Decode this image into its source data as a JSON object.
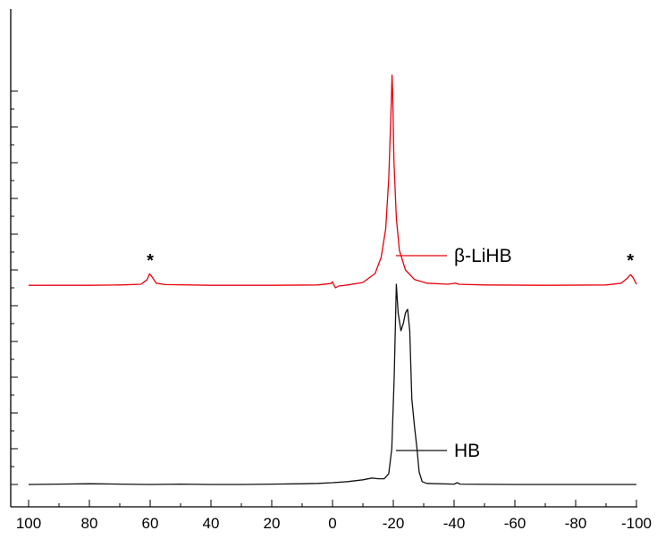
{
  "chart_data": {
    "type": "line",
    "xlim": [
      100,
      -100
    ],
    "x_reversed": true,
    "ylim": [
      0,
      11
    ],
    "xticks": [
      "100",
      "80",
      "60",
      "40",
      "20",
      "0",
      "-20",
      "-40",
      "-60",
      "-80",
      "-100"
    ],
    "y_tick_labels_shown": false,
    "grid": false,
    "legend": "per-series, right side",
    "series": [
      {
        "name": "β-LiHB",
        "color": "#e8000b",
        "offset": 5.55,
        "points": [
          [
            100,
            0.02
          ],
          [
            80,
            0.02
          ],
          [
            70,
            0.03
          ],
          [
            63,
            0.05
          ],
          [
            61,
            0.18
          ],
          [
            60.2,
            0.34
          ],
          [
            59.4,
            0.26
          ],
          [
            58,
            0.08
          ],
          [
            55,
            0.04
          ],
          [
            40,
            0.02
          ],
          [
            20,
            0.02
          ],
          [
            5,
            0.03
          ],
          [
            0.5,
            0.07
          ],
          [
            0,
            0.12
          ],
          [
            -0.5,
            0.02
          ],
          [
            -1,
            -0.05
          ],
          [
            -2,
            0
          ],
          [
            -5,
            0.03
          ],
          [
            -10,
            0.1
          ],
          [
            -14,
            0.35
          ],
          [
            -16,
            0.8
          ],
          [
            -17.5,
            1.6
          ],
          [
            -18.5,
            3
          ],
          [
            -19.2,
            4.8
          ],
          [
            -19.6,
            5.9
          ],
          [
            -19.8,
            5.4
          ],
          [
            -20.2,
            3.5
          ],
          [
            -21,
            1.9
          ],
          [
            -22,
            1
          ],
          [
            -24,
            0.45
          ],
          [
            -27,
            0.18
          ],
          [
            -31,
            0.08
          ],
          [
            -38,
            0.05
          ],
          [
            -40.5,
            0.08
          ],
          [
            -41.5,
            0.05
          ],
          [
            -50,
            0.03
          ],
          [
            -70,
            0.02
          ],
          [
            -90,
            0.03
          ],
          [
            -95,
            0.08
          ],
          [
            -97,
            0.22
          ],
          [
            -98.1,
            0.32
          ],
          [
            -99,
            0.22
          ],
          [
            -100,
            0.05
          ]
        ]
      },
      {
        "name": "HB",
        "color": "#111111",
        "offset": 0,
        "points": [
          [
            100,
            0
          ],
          [
            90,
            0.01
          ],
          [
            80,
            0.02
          ],
          [
            70,
            0.01
          ],
          [
            60,
            0
          ],
          [
            50,
            0.01
          ],
          [
            40,
            0
          ],
          [
            30,
            0
          ],
          [
            20,
            0.01
          ],
          [
            10,
            0.02
          ],
          [
            5,
            0.03
          ],
          [
            0,
            0.05
          ],
          [
            -5,
            0.08
          ],
          [
            -10,
            0.13
          ],
          [
            -13,
            0.18
          ],
          [
            -15,
            0.16
          ],
          [
            -17,
            0.16
          ],
          [
            -18.5,
            0.3
          ],
          [
            -19.5,
            1
          ],
          [
            -20.3,
            3
          ],
          [
            -21,
            5.6
          ],
          [
            -21.6,
            4.8
          ],
          [
            -22.5,
            4.3
          ],
          [
            -23.3,
            4.5
          ],
          [
            -24,
            4.8
          ],
          [
            -24.7,
            4.9
          ],
          [
            -25.4,
            4.3
          ],
          [
            -26.1,
            2.4
          ],
          [
            -27,
            1.6
          ],
          [
            -27.8,
            1
          ],
          [
            -28.5,
            0.35
          ],
          [
            -29.5,
            0.08
          ],
          [
            -31,
            0.03
          ],
          [
            -40,
            0.01
          ],
          [
            -41,
            0.05
          ],
          [
            -42,
            0.01
          ],
          [
            -60,
            0
          ],
          [
            -80,
            0
          ],
          [
            -100,
            0
          ]
        ]
      }
    ],
    "annotations": [
      {
        "text": "*",
        "x": 60,
        "y": 6.1
      },
      {
        "text": "*",
        "x": -98,
        "y": 6.1
      }
    ],
    "legend_entries": [
      {
        "series": "β-LiHB",
        "x": -40,
        "y": 6.4
      },
      {
        "series": "HB",
        "x": -40,
        "y": 0.95
      }
    ]
  }
}
